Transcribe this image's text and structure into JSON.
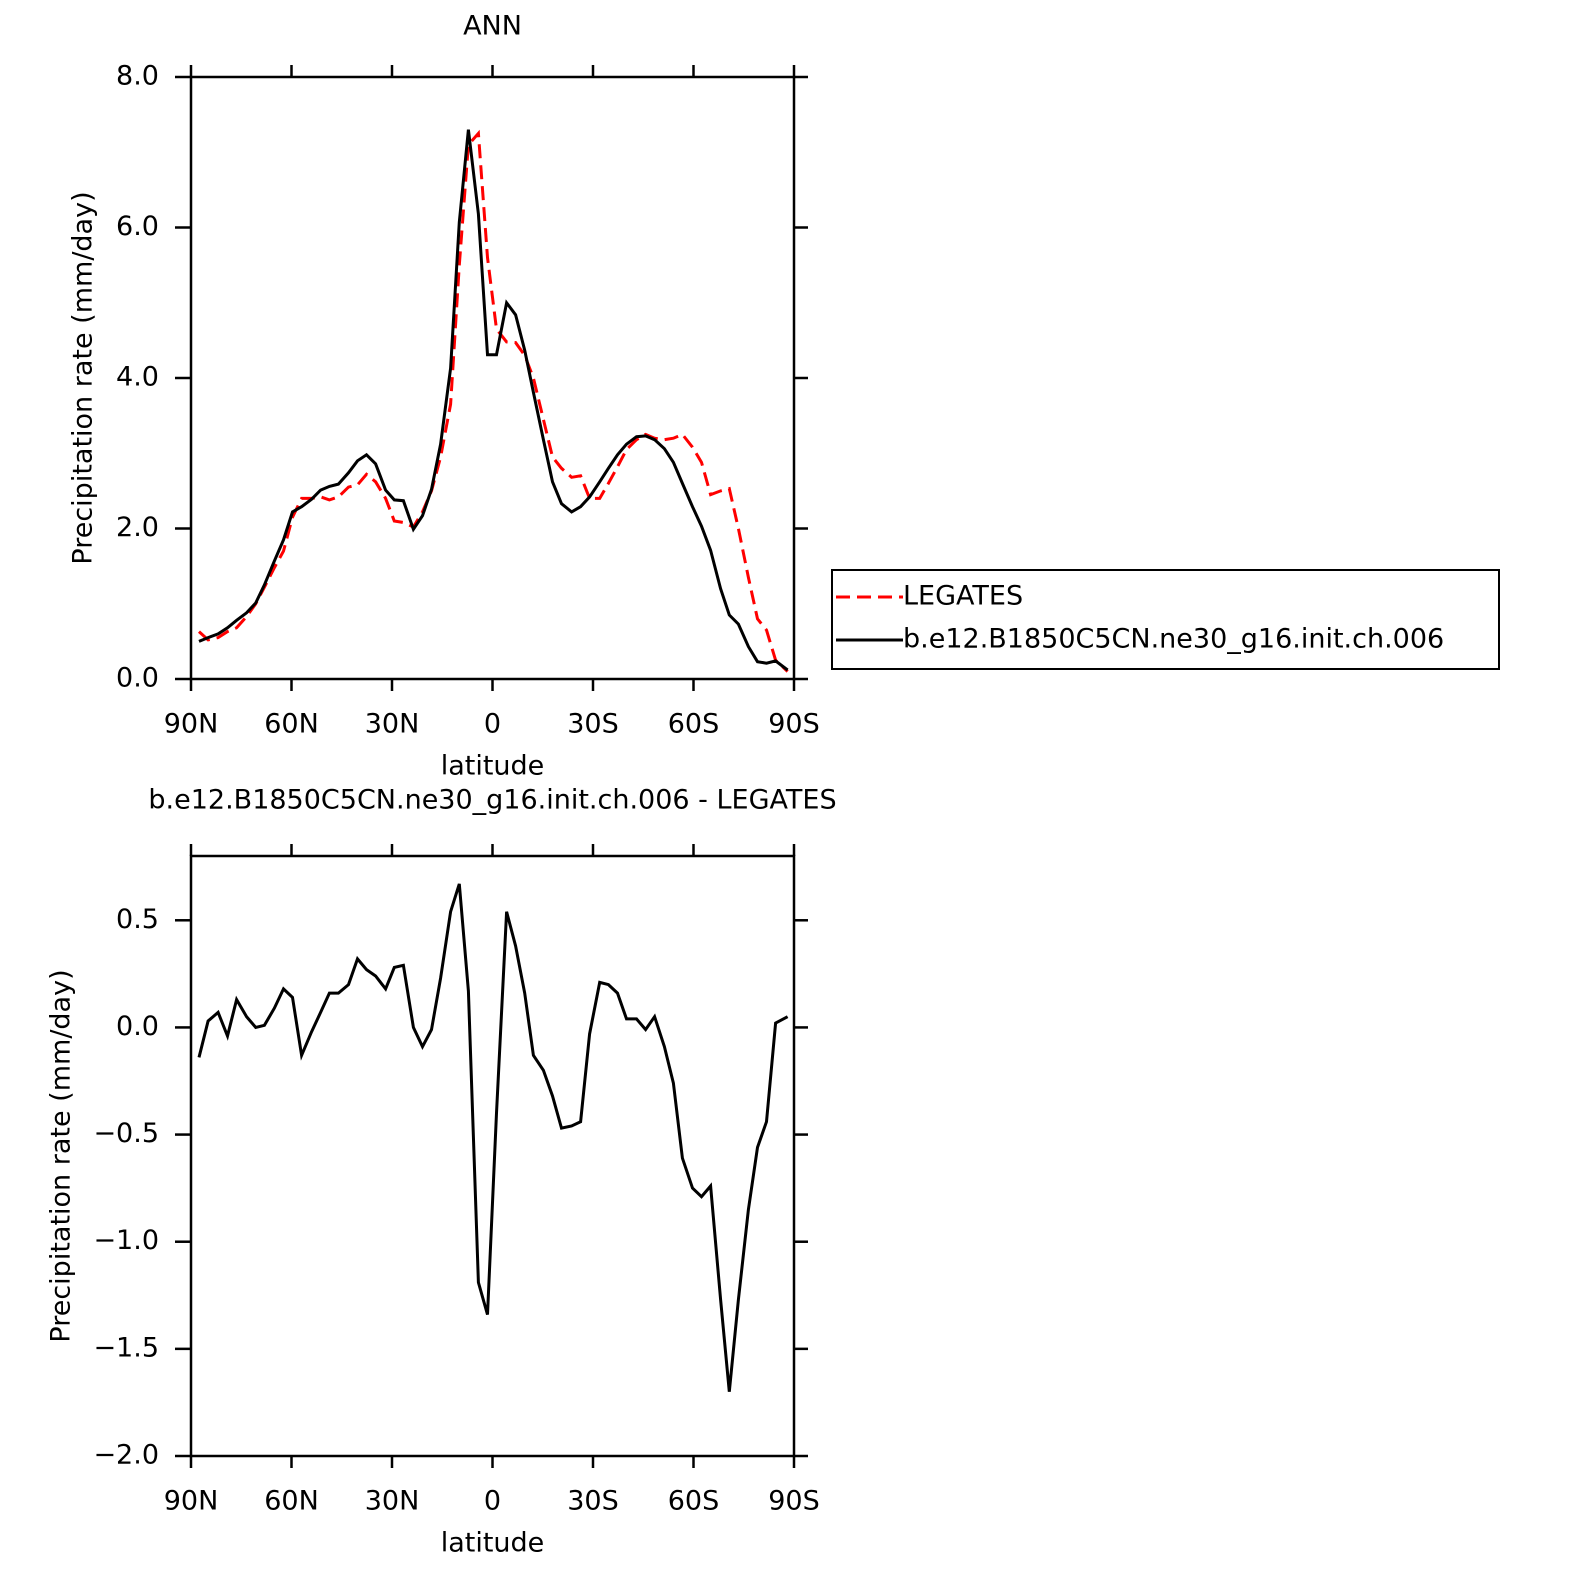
{
  "chart_data": [
    {
      "type": "line",
      "title": "ANN",
      "xlabel": "latitude",
      "ylabel": "Precipitation rate (mm/day)",
      "x": [
        87.6,
        84.9,
        81.9,
        79.1,
        76.4,
        73.4,
        70.7,
        68.1,
        65.1,
        62.4,
        59.7,
        57.0,
        54.0,
        51.3,
        48.7,
        46.0,
        43.0,
        40.3,
        37.6,
        34.9,
        31.9,
        29.3,
        26.6,
        23.6,
        20.9,
        18.2,
        15.5,
        12.5,
        9.9,
        7.2,
        4.2,
        1.5,
        -1.2,
        -4.2,
        -6.9,
        -9.6,
        -12.2,
        -15.2,
        -17.9,
        -20.6,
        -23.6,
        -26.3,
        -29.0,
        -32.0,
        -34.6,
        -37.3,
        -40.0,
        -43.0,
        -45.7,
        -48.4,
        -51.3,
        -54.0,
        -56.7,
        -59.7,
        -62.4,
        -65.1,
        -68.1,
        -70.7,
        -73.4,
        -76.4,
        -79.1,
        -81.8,
        -84.5,
        -88.1
      ],
      "xlim": [
        90,
        -90
      ],
      "xticks": [
        {
          "value": 90,
          "label": "90N"
        },
        {
          "value": 60,
          "label": "60N"
        },
        {
          "value": 30,
          "label": "30N"
        },
        0,
        {
          "value": -30,
          "label": "30S"
        },
        {
          "value": -60,
          "label": "60S"
        },
        {
          "value": -90,
          "label": "90S"
        }
      ],
      "ylim": [
        0,
        8
      ],
      "yticks": [
        {
          "value": 0,
          "label": "0.0"
        },
        {
          "value": 2,
          "label": "2.0"
        },
        {
          "value": 4,
          "label": "4.0"
        },
        {
          "value": 6,
          "label": "6.0"
        },
        {
          "value": 8,
          "label": "8.0"
        }
      ],
      "legend": "right",
      "series": [
        {
          "name": "LEGATES",
          "color": "#ff0000",
          "line_style": "dashed",
          "values": [
            0.63,
            0.52,
            0.55,
            0.63,
            0.68,
            0.83,
            1.0,
            1.22,
            1.48,
            1.7,
            2.15,
            2.4,
            2.4,
            2.42,
            2.38,
            2.42,
            2.55,
            2.58,
            2.72,
            2.62,
            2.4,
            2.1,
            2.08,
            2.02,
            2.22,
            2.5,
            2.95,
            3.65,
            5.5,
            7.1,
            7.25,
            5.6,
            4.65,
            4.48,
            4.47,
            4.3,
            4.0,
            3.45,
            2.95,
            2.8,
            2.68,
            2.7,
            2.4,
            2.4,
            2.6,
            2.82,
            3.05,
            3.18,
            3.25,
            3.2,
            3.18,
            3.2,
            3.25,
            3.08,
            2.88,
            2.45,
            2.5,
            2.53,
            2.0,
            1.35,
            0.8,
            0.65,
            0.25,
            0.1
          ]
        },
        {
          "name": "b.e12.B1850C5CN.ne30_g16.init.ch.006",
          "color": "#000000",
          "line_style": "solid",
          "values": [
            0.5,
            0.55,
            0.6,
            0.68,
            0.78,
            0.88,
            1.01,
            1.25,
            1.57,
            1.85,
            2.22,
            2.29,
            2.39,
            2.51,
            2.56,
            2.59,
            2.74,
            2.9,
            2.98,
            2.86,
            2.51,
            2.38,
            2.37,
            1.99,
            2.17,
            2.52,
            3.12,
            4.13,
            6.07,
            7.3,
            6.18,
            4.31,
            4.31,
            5.0,
            4.84,
            4.37,
            3.81,
            3.18,
            2.62,
            2.33,
            2.22,
            2.29,
            2.42,
            2.62,
            2.8,
            2.98,
            3.12,
            3.22,
            3.23,
            3.18,
            3.06,
            2.88,
            2.6,
            2.29,
            2.03,
            1.71,
            1.2,
            0.85,
            0.73,
            0.43,
            0.23,
            0.21,
            0.24,
            0.12
          ]
        }
      ]
    },
    {
      "type": "line",
      "title": "b.e12.B1850C5CN.ne30_g16.init.ch.006 - LEGATES",
      "xlabel": "latitude",
      "ylabel": "Precipitation rate (mm/day)",
      "x": [
        87.6,
        84.9,
        81.9,
        79.1,
        76.4,
        73.4,
        70.7,
        68.1,
        65.1,
        62.4,
        59.7,
        57.0,
        54.0,
        51.3,
        48.7,
        46.0,
        43.0,
        40.3,
        37.6,
        34.9,
        31.9,
        29.3,
        26.6,
        23.6,
        20.9,
        18.2,
        15.5,
        12.5,
        9.9,
        7.2,
        4.2,
        1.5,
        -1.2,
        -4.2,
        -6.9,
        -9.6,
        -12.2,
        -15.2,
        -17.9,
        -20.6,
        -23.6,
        -26.3,
        -29.0,
        -32.0,
        -34.6,
        -37.3,
        -40.0,
        -43.0,
        -45.7,
        -48.4,
        -51.3,
        -54.0,
        -56.7,
        -59.7,
        -62.4,
        -65.1,
        -68.1,
        -70.7,
        -73.4,
        -76.4,
        -79.1,
        -81.8,
        -84.5,
        -88.1
      ],
      "xlim": [
        90,
        -90
      ],
      "xticks": [
        {
          "value": 90,
          "label": "90N"
        },
        {
          "value": 60,
          "label": "60N"
        },
        {
          "value": 30,
          "label": "30N"
        },
        0,
        {
          "value": -30,
          "label": "30S"
        },
        {
          "value": -60,
          "label": "60S"
        },
        {
          "value": -90,
          "label": "90S"
        }
      ],
      "ylim": [
        -2.0,
        0.8
      ],
      "yticks": [
        0.5,
        {
          "value": 0,
          "label": "0.0"
        },
        {
          "value": -0.5,
          "label": "−0.5"
        },
        {
          "value": -1.0,
          "label": "−1.0"
        },
        {
          "value": -1.5,
          "label": "−1.5"
        },
        {
          "value": -2.0,
          "label": "−2.0"
        }
      ],
      "color": "#000000",
      "values": [
        -0.14,
        0.03,
        0.07,
        -0.04,
        0.13,
        0.05,
        0.0,
        0.01,
        0.09,
        0.18,
        0.14,
        -0.13,
        -0.02,
        0.07,
        0.16,
        0.16,
        0.2,
        0.32,
        0.27,
        0.24,
        0.18,
        0.28,
        0.29,
        0.0,
        -0.09,
        -0.01,
        0.23,
        0.54,
        0.67,
        0.17,
        -1.19,
        -1.34,
        -0.4,
        0.54,
        0.38,
        0.16,
        -0.13,
        -0.2,
        -0.32,
        -0.47,
        -0.46,
        -0.44,
        -0.03,
        0.21,
        0.2,
        0.16,
        0.04,
        0.04,
        -0.01,
        0.05,
        -0.09,
        -0.26,
        -0.61,
        -0.75,
        -0.79,
        -0.74,
        -1.27,
        -1.7,
        -1.27,
        -0.85,
        -0.56,
        -0.44,
        0.02,
        0.05
      ]
    }
  ]
}
